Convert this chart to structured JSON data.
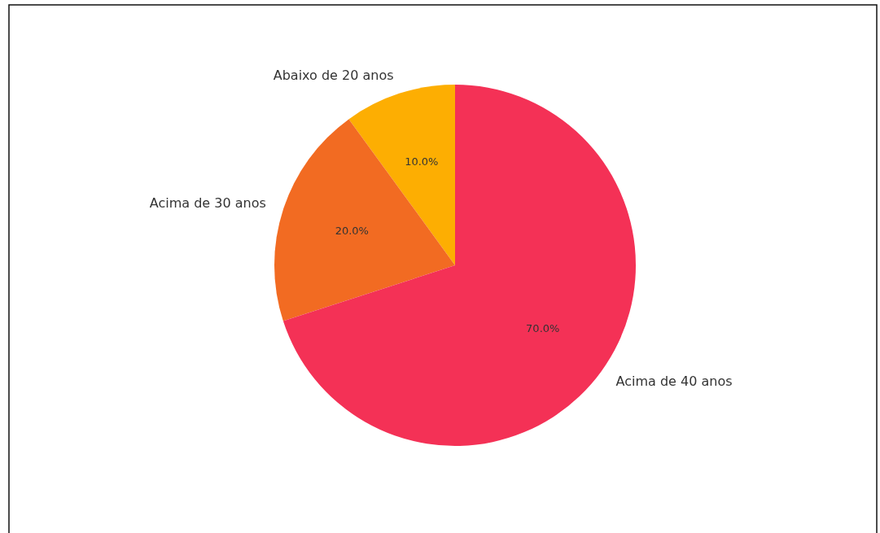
{
  "chart_data": {
    "type": "pie",
    "categories": [
      "Abaixo de 20 anos",
      "Acima de 30 anos",
      "Acima de 40 anos"
    ],
    "values": [
      10,
      20,
      70
    ],
    "colors": [
      "#fdae02",
      "#f26b22",
      "#f43156"
    ],
    "value_labels": [
      "10.0%",
      "20.0%",
      "70.0%"
    ]
  }
}
